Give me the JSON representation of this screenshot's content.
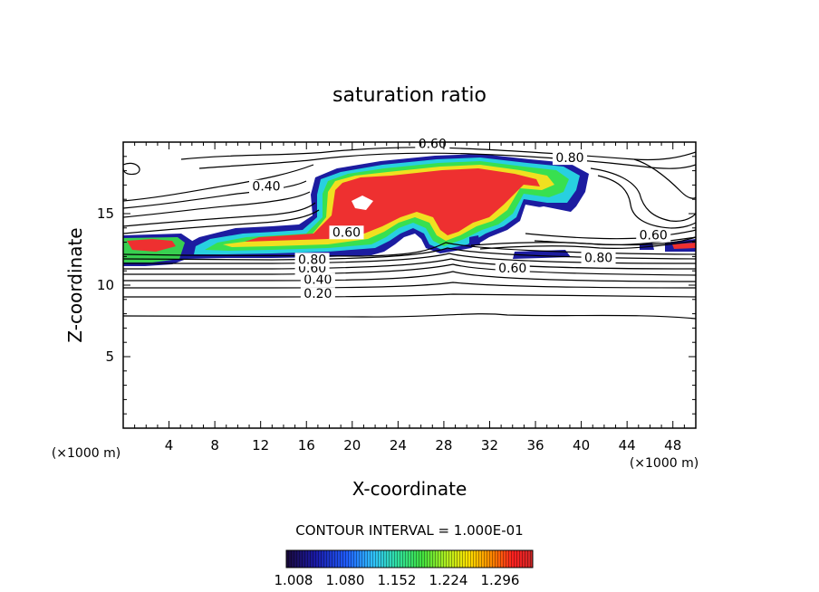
{
  "chart_data": {
    "type": "contour",
    "title": "saturation ratio",
    "xlabel": "X-coordinate",
    "ylabel": "Z-coordinate",
    "x_unit": "(×1000 m)",
    "y_unit": "(×1000 m)",
    "xlim": [
      0,
      50
    ],
    "ylim": [
      0,
      20
    ],
    "x_ticks": [
      4,
      8,
      12,
      16,
      20,
      24,
      28,
      32,
      36,
      40,
      44,
      48
    ],
    "y_ticks": [
      5,
      10,
      15
    ],
    "contour_interval_text": "CONTOUR INTERVAL = 1.000E-01",
    "contour_line_labels": [
      {
        "text": "0.20",
        "x": 17.0,
        "y": 9.1
      },
      {
        "text": "0.40",
        "x": 17.0,
        "y": 10.1
      },
      {
        "text": "0.60",
        "x": 16.5,
        "y": 10.9
      },
      {
        "text": "0.80",
        "x": 16.5,
        "y": 11.5
      },
      {
        "text": "0.40",
        "x": 12.5,
        "y": 16.6
      },
      {
        "text": "0.60",
        "x": 27.0,
        "y": 19.6
      },
      {
        "text": "0.80",
        "x": 39.0,
        "y": 18.6
      },
      {
        "text": "0.60",
        "x": 34.0,
        "y": 10.9
      },
      {
        "text": "0.80",
        "x": 41.5,
        "y": 11.6
      },
      {
        "text": "0.60",
        "x": 46.3,
        "y": 13.2
      },
      {
        "text": "0.60",
        "x": 19.5,
        "y": 13.4
      }
    ],
    "shaded_range": [
      1.0,
      1.35
    ],
    "colorbar_ticks": [
      "1.008",
      "1.080",
      "1.152",
      "1.224",
      "1.296"
    ],
    "colormap": [
      "#1a0a3a",
      "#1a1aa8",
      "#2060ff",
      "#30c0ff",
      "#30e0a0",
      "#40e040",
      "#b0ee20",
      "#ffe000",
      "#ff8000",
      "#ff2020",
      "#e03030",
      "#ff5050"
    ],
    "grid": false
  }
}
